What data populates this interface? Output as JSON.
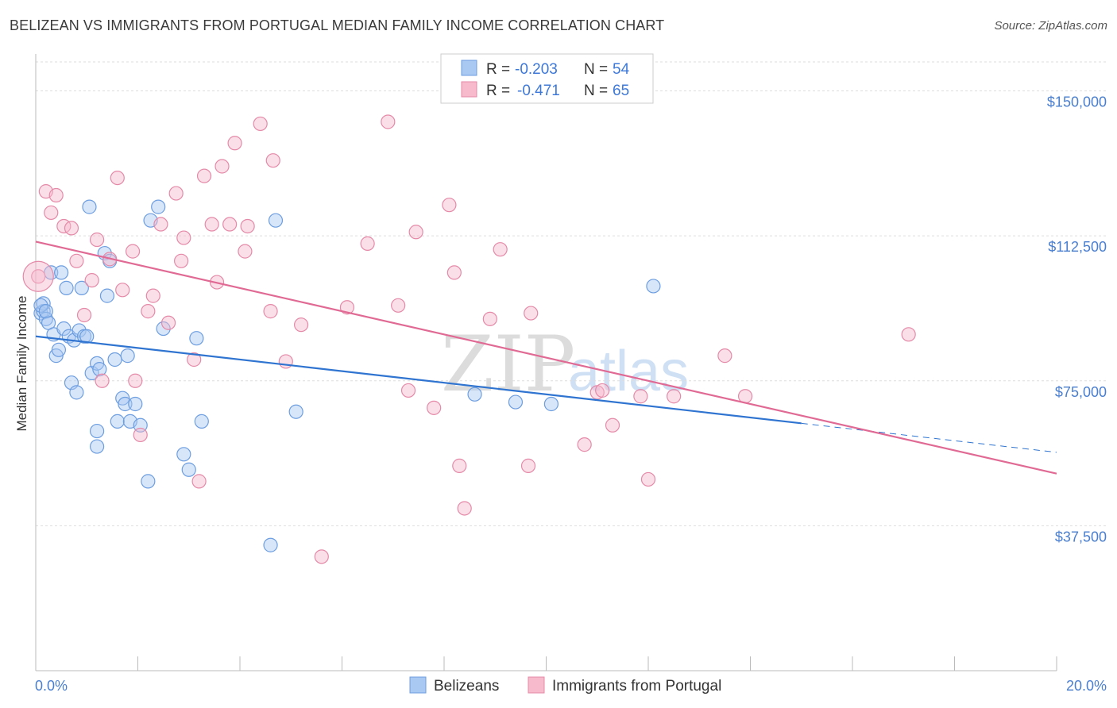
{
  "title": "BELIZEAN VS IMMIGRANTS FROM PORTUGAL MEDIAN FAMILY INCOME CORRELATION CHART",
  "source": "Source: ZipAtlas.com",
  "watermark": {
    "zip": "ZIP",
    "atlas": "atlas"
  },
  "legend_box": {
    "rows": [
      {
        "r_label": "R =",
        "r_value": "-0.203",
        "n_label": "N =",
        "n_value": "54"
      },
      {
        "r_label": "R =",
        "r_value": "-0.471",
        "n_label": "N =",
        "n_value": "65"
      }
    ]
  },
  "chart_data": {
    "type": "scatter",
    "xlabel": "",
    "ylabel": "Median Family Income",
    "xlim": [
      0,
      20
    ],
    "ylim": [
      0,
      157500
    ],
    "x_tick_labels": [
      "0.0%",
      "20.0%"
    ],
    "y_ticks": [
      37500,
      75000,
      112500,
      150000
    ],
    "y_tick_labels": [
      "$37,500",
      "$75,000",
      "$112,500",
      "$150,000"
    ],
    "grid": true,
    "legend_position": "bottom",
    "colors": {
      "blue_fill": "#a9c8f2",
      "blue_stroke": "#6d9ee0",
      "blue_line": "#2f74d0",
      "pink_fill": "#f7b9cc",
      "pink_stroke": "#e48aa8",
      "pink_line": "#e06a94",
      "grid": "#dddddd",
      "axis": "#bbbbbb",
      "tick_text": "#4a7fd0"
    },
    "series": [
      {
        "name": "Belizeans",
        "points": [
          [
            0.1,
            92500
          ],
          [
            0.15,
            93000
          ],
          [
            0.15,
            95000
          ],
          [
            0.2,
            91000
          ],
          [
            0.25,
            90000
          ],
          [
            0.3,
            103000
          ],
          [
            0.35,
            87000
          ],
          [
            0.4,
            81500
          ],
          [
            0.45,
            83000
          ],
          [
            0.5,
            103000
          ],
          [
            0.55,
            88500
          ],
          [
            0.6,
            99000
          ],
          [
            0.65,
            86500
          ],
          [
            0.7,
            74500
          ],
          [
            0.75,
            85500
          ],
          [
            0.8,
            72000
          ],
          [
            0.85,
            88000
          ],
          [
            0.9,
            99000
          ],
          [
            0.95,
            86500
          ],
          [
            1.0,
            86500
          ],
          [
            1.05,
            120000
          ],
          [
            1.1,
            77000
          ],
          [
            1.2,
            79500
          ],
          [
            1.25,
            78000
          ],
          [
            1.2,
            62000
          ],
          [
            1.2,
            58000
          ],
          [
            1.35,
            108000
          ],
          [
            1.4,
            97000
          ],
          [
            1.45,
            106000
          ],
          [
            1.55,
            80500
          ],
          [
            1.6,
            64500
          ],
          [
            1.7,
            70500
          ],
          [
            1.75,
            69000
          ],
          [
            1.8,
            81500
          ],
          [
            1.85,
            64500
          ],
          [
            1.95,
            69000
          ],
          [
            2.05,
            63500
          ],
          [
            2.2,
            49000
          ],
          [
            2.25,
            116500
          ],
          [
            2.4,
            120000
          ],
          [
            2.5,
            88500
          ],
          [
            2.9,
            56000
          ],
          [
            3.0,
            52000
          ],
          [
            3.15,
            86000
          ],
          [
            3.25,
            64500
          ],
          [
            4.6,
            32500
          ],
          [
            4.7,
            116500
          ],
          [
            5.1,
            67000
          ],
          [
            8.6,
            71500
          ],
          [
            9.4,
            69500
          ],
          [
            10.1,
            69000
          ],
          [
            12.1,
            99500
          ],
          [
            0.1,
            94500
          ],
          [
            0.2,
            93000
          ]
        ]
      },
      {
        "name": "Immigrants from Portugal",
        "points": [
          [
            0.05,
            102000
          ],
          [
            0.2,
            124000
          ],
          [
            0.3,
            118500
          ],
          [
            0.4,
            123000
          ],
          [
            0.55,
            115000
          ],
          [
            0.7,
            114500
          ],
          [
            0.8,
            106000
          ],
          [
            0.95,
            92000
          ],
          [
            1.1,
            101000
          ],
          [
            1.2,
            111500
          ],
          [
            1.3,
            75000
          ],
          [
            1.45,
            106500
          ],
          [
            1.6,
            127500
          ],
          [
            1.7,
            98500
          ],
          [
            1.9,
            108500
          ],
          [
            1.95,
            75000
          ],
          [
            2.05,
            61000
          ],
          [
            2.2,
            93000
          ],
          [
            2.3,
            97000
          ],
          [
            2.45,
            115500
          ],
          [
            2.6,
            90000
          ],
          [
            2.75,
            123500
          ],
          [
            2.85,
            106000
          ],
          [
            2.9,
            112000
          ],
          [
            3.1,
            80500
          ],
          [
            3.2,
            49000
          ],
          [
            3.3,
            128000
          ],
          [
            3.45,
            115500
          ],
          [
            3.55,
            100500
          ],
          [
            3.65,
            130500
          ],
          [
            3.8,
            115500
          ],
          [
            3.9,
            136500
          ],
          [
            4.1,
            108500
          ],
          [
            4.15,
            115000
          ],
          [
            4.4,
            141500
          ],
          [
            4.6,
            93000
          ],
          [
            4.65,
            132000
          ],
          [
            4.9,
            80000
          ],
          [
            5.2,
            89500
          ],
          [
            5.6,
            29500
          ],
          [
            6.1,
            94000
          ],
          [
            6.5,
            110500
          ],
          [
            6.9,
            142000
          ],
          [
            7.1,
            94500
          ],
          [
            7.3,
            72500
          ],
          [
            7.45,
            113500
          ],
          [
            7.8,
            68000
          ],
          [
            8.1,
            120500
          ],
          [
            8.2,
            103000
          ],
          [
            8.3,
            53000
          ],
          [
            8.4,
            42000
          ],
          [
            8.9,
            91000
          ],
          [
            9.1,
            109000
          ],
          [
            9.65,
            53000
          ],
          [
            9.7,
            92500
          ],
          [
            10.75,
            58500
          ],
          [
            11.0,
            72000
          ],
          [
            11.1,
            72500
          ],
          [
            11.3,
            63500
          ],
          [
            11.85,
            71000
          ],
          [
            12.0,
            49500
          ],
          [
            12.5,
            71000
          ],
          [
            13.5,
            81500
          ],
          [
            13.9,
            71000
          ],
          [
            17.1,
            87000
          ]
        ]
      }
    ],
    "trend_lines": [
      {
        "series": "Belizeans",
        "x1": 0,
        "y1": 86500,
        "x2": 15.0,
        "y2": 64000,
        "dashed_to_x": 20,
        "dashed_to_y": 56500
      },
      {
        "series": "Immigrants from Portugal",
        "x1": 0,
        "y1": 111000,
        "x2": 20,
        "y2": 51000
      }
    ]
  }
}
